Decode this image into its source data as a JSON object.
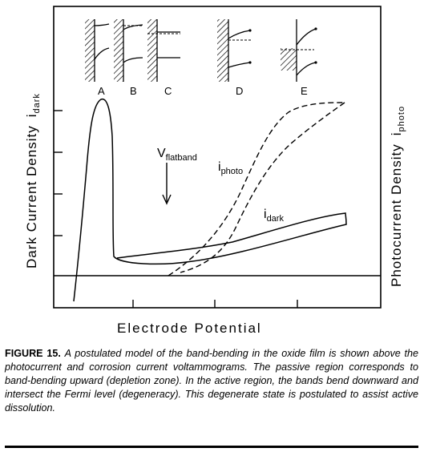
{
  "figure": {
    "y_left_label_main": "Dark Current Density",
    "y_left_label_sym": "i",
    "y_left_label_sub": "dark",
    "y_right_label_main": "Photocurrent Density",
    "y_right_label_sym": "i",
    "y_right_label_sub": "photo",
    "x_label": "Electrode Potential",
    "flatband_sym": "V",
    "flatband_sub": "flatband",
    "iphoto_sym": "i",
    "iphoto_sub": "photo",
    "idark_sym": "i",
    "idark_sub": "dark",
    "band_diagrams": [
      "A",
      "B",
      "C",
      "D",
      "E"
    ]
  },
  "caption": {
    "label": "FIGURE 15.",
    "text": "A postulated model of the band-bending in the oxide film is shown above the photocurrent and corrosion current voltammograms. The passive region corresponds to band-bending upward (depletion zone). In the active region, the bands bend downward and intersect the Fermi level (degeneracy). This degenerate state is postulated to assist active dissolution."
  }
}
